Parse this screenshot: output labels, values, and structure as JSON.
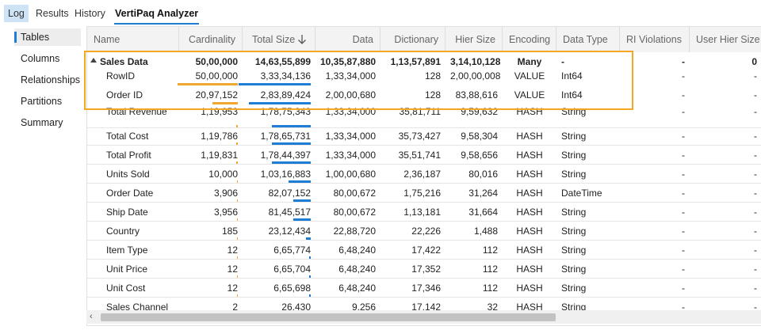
{
  "tabs": [
    "Log",
    "Results",
    "History",
    "VertiPaq Analyzer"
  ],
  "nav": [
    "Tables",
    "Columns",
    "Relationships",
    "Partitions",
    "Summary"
  ],
  "columns": [
    "Name",
    "Cardinality",
    "Total Size",
    "Data",
    "Dictionary",
    "Hier Size",
    "Encoding",
    "Data Type",
    "RI Violations",
    "User Hier Size"
  ],
  "sort_icon": "arrow-down-icon",
  "group": {
    "name": "Sales Data",
    "cardinality": "50,00,000",
    "total_size": "14,63,55,899",
    "data": "10,35,87,880",
    "dictionary": "1,13,57,891",
    "hier_size": "3,14,10,128",
    "encoding": "Many",
    "data_type": "-",
    "ri_violations": "-",
    "user_hier_size": "0"
  },
  "rows": [
    {
      "name": "RowID",
      "cardinality": "50,00,000",
      "total_size": "3,33,34,136",
      "data": "1,33,34,000",
      "dictionary": "128",
      "hier_size": "2,00,00,008",
      "encoding": "VALUE",
      "data_type": "Int64",
      "ri_violations": "-",
      "user_hier_size": "-"
    },
    {
      "name": "Order ID",
      "cardinality": "20,97,152",
      "total_size": "2,83,89,424",
      "data": "2,00,00,680",
      "dictionary": "128",
      "hier_size": "83,88,616",
      "encoding": "VALUE",
      "data_type": "Int64",
      "ri_violations": "-",
      "user_hier_size": "-"
    },
    {
      "name": "Total Revenue",
      "cardinality": "1,19,953",
      "total_size": "1,78,75,343",
      "data": "1,33,34,000",
      "dictionary": "35,81,711",
      "hier_size": "9,59,632",
      "encoding": "HASH",
      "data_type": "String",
      "ri_violations": "-",
      "user_hier_size": "-"
    },
    {
      "name": "Total Cost",
      "cardinality": "1,19,786",
      "total_size": "1,78,65,731",
      "data": "1,33,34,000",
      "dictionary": "35,73,427",
      "hier_size": "9,58,304",
      "encoding": "HASH",
      "data_type": "String",
      "ri_violations": "-",
      "user_hier_size": "-"
    },
    {
      "name": "Total Profit",
      "cardinality": "1,19,831",
      "total_size": "1,78,44,397",
      "data": "1,33,34,000",
      "dictionary": "35,51,741",
      "hier_size": "9,58,656",
      "encoding": "HASH",
      "data_type": "String",
      "ri_violations": "-",
      "user_hier_size": "-"
    },
    {
      "name": "Units Sold",
      "cardinality": "10,000",
      "total_size": "1,03,16,883",
      "data": "1,00,00,680",
      "dictionary": "2,36,187",
      "hier_size": "80,016",
      "encoding": "HASH",
      "data_type": "String",
      "ri_violations": "-",
      "user_hier_size": "-"
    },
    {
      "name": "Order Date",
      "cardinality": "3,906",
      "total_size": "82,07,152",
      "data": "80,00,672",
      "dictionary": "1,75,216",
      "hier_size": "31,264",
      "encoding": "HASH",
      "data_type": "DateTime",
      "ri_violations": "-",
      "user_hier_size": "-"
    },
    {
      "name": "Ship Date",
      "cardinality": "3,956",
      "total_size": "81,45,517",
      "data": "80,00,672",
      "dictionary": "1,13,181",
      "hier_size": "31,664",
      "encoding": "HASH",
      "data_type": "String",
      "ri_violations": "-",
      "user_hier_size": "-"
    },
    {
      "name": "Country",
      "cardinality": "185",
      "total_size": "23,12,434",
      "data": "22,88,720",
      "dictionary": "22,226",
      "hier_size": "1,488",
      "encoding": "HASH",
      "data_type": "String",
      "ri_violations": "-",
      "user_hier_size": "-"
    },
    {
      "name": "Item Type",
      "cardinality": "12",
      "total_size": "6,65,774",
      "data": "6,48,240",
      "dictionary": "17,422",
      "hier_size": "112",
      "encoding": "HASH",
      "data_type": "String",
      "ri_violations": "-",
      "user_hier_size": "-"
    },
    {
      "name": "Unit Price",
      "cardinality": "12",
      "total_size": "6,65,704",
      "data": "6,48,240",
      "dictionary": "17,352",
      "hier_size": "112",
      "encoding": "HASH",
      "data_type": "String",
      "ri_violations": "-",
      "user_hier_size": "-"
    },
    {
      "name": "Unit Cost",
      "cardinality": "12",
      "total_size": "6,65,698",
      "data": "6,48,240",
      "dictionary": "17,346",
      "hier_size": "112",
      "encoding": "HASH",
      "data_type": "String",
      "ri_violations": "-",
      "user_hier_size": "-"
    },
    {
      "name": "Sales Channel",
      "cardinality": "2",
      "total_size": "26,430",
      "data": "9,256",
      "dictionary": "17,142",
      "hier_size": "32",
      "encoding": "HASH",
      "data_type": "String",
      "ri_violations": "-",
      "user_hier_size": "-"
    }
  ],
  "bar_fractions": {
    "cardinality": [
      1.0,
      0.42,
      0.024,
      0.024,
      0.024,
      0.002,
      0.001,
      0.001,
      0.0,
      0.0,
      0.0,
      0.0,
      0.0
    ],
    "total_size": [
      0.228,
      0.194,
      0.122,
      0.122,
      0.122,
      0.07,
      0.056,
      0.056,
      0.016,
      0.005,
      0.005,
      0.005,
      0.0
    ]
  },
  "colors": {
    "accent": "#1f7dd6",
    "size_bar": "#1f7dd6",
    "card_bar": "#f0a830",
    "highlight": "#f5a623"
  }
}
